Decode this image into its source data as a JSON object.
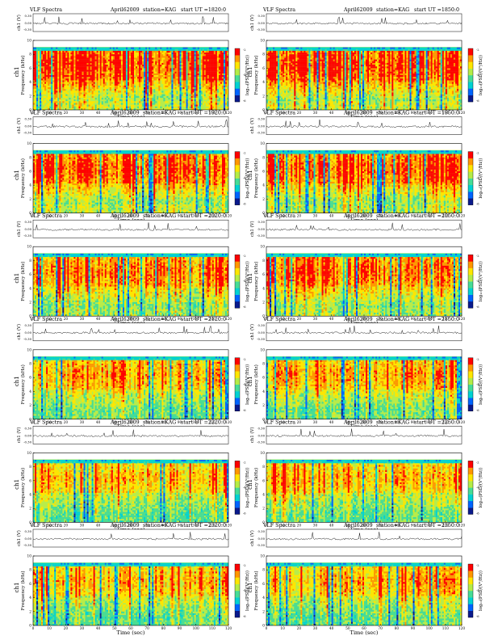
{
  "labels": {
    "series_prefix": "VLF Spectra",
    "date": "April62009",
    "station": "station=KAG",
    "start_prefix": "start  UT  =",
    "time_axis_label": "Time  (sec)",
    "freq_axis_label": "Frequency  (kHz)",
    "channel_label": "ch1",
    "signal_axis_label": "ch1 (V)",
    "colorbar_label": "log₁₀(PSD/(V²/Hz))"
  },
  "chart_data": [
    {
      "type": "heatmap",
      "start_ut": "1820:0",
      "intensity": 1.0
    },
    {
      "type": "heatmap",
      "start_ut": "1850:0",
      "intensity": 0.98
    },
    {
      "type": "heatmap",
      "start_ut": "1920:0",
      "intensity": 0.9
    },
    {
      "type": "heatmap",
      "start_ut": "1950:0",
      "intensity": 0.88
    },
    {
      "type": "heatmap",
      "start_ut": "2020:0",
      "intensity": 0.78
    },
    {
      "type": "heatmap",
      "start_ut": "2050:0",
      "intensity": 0.8
    },
    {
      "type": "heatmap",
      "start_ut": "2120:0",
      "intensity": 0.6
    },
    {
      "type": "heatmap",
      "start_ut": "2150:0",
      "intensity": 0.62
    },
    {
      "type": "heatmap",
      "start_ut": "2220:0",
      "intensity": 0.5
    },
    {
      "type": "heatmap",
      "start_ut": "2250:0",
      "intensity": 0.52
    },
    {
      "type": "heatmap",
      "start_ut": "2320:0",
      "intensity": 0.55
    },
    {
      "type": "heatmap",
      "start_ut": "2350:0",
      "intensity": 0.57
    }
  ],
  "axes": {
    "x_range": [
      0,
      120
    ],
    "x_ticks": [
      0,
      10,
      20,
      30,
      40,
      50,
      60,
      70,
      80,
      90,
      100,
      110,
      120
    ],
    "y_range": [
      0,
      10
    ],
    "y_ticks": [
      0,
      2,
      4,
      6,
      8,
      10
    ],
    "signal_ticks": [
      "0.30",
      "0.00",
      "-0.30"
    ],
    "colorbar_ticks": [
      "-2",
      "-4",
      "-6"
    ]
  },
  "colormap": [
    "#0a1a8c",
    "#0064ff",
    "#00d2d2",
    "#46dc96",
    "#b4ec46",
    "#ffe600",
    "#ff9600",
    "#ff0000"
  ]
}
